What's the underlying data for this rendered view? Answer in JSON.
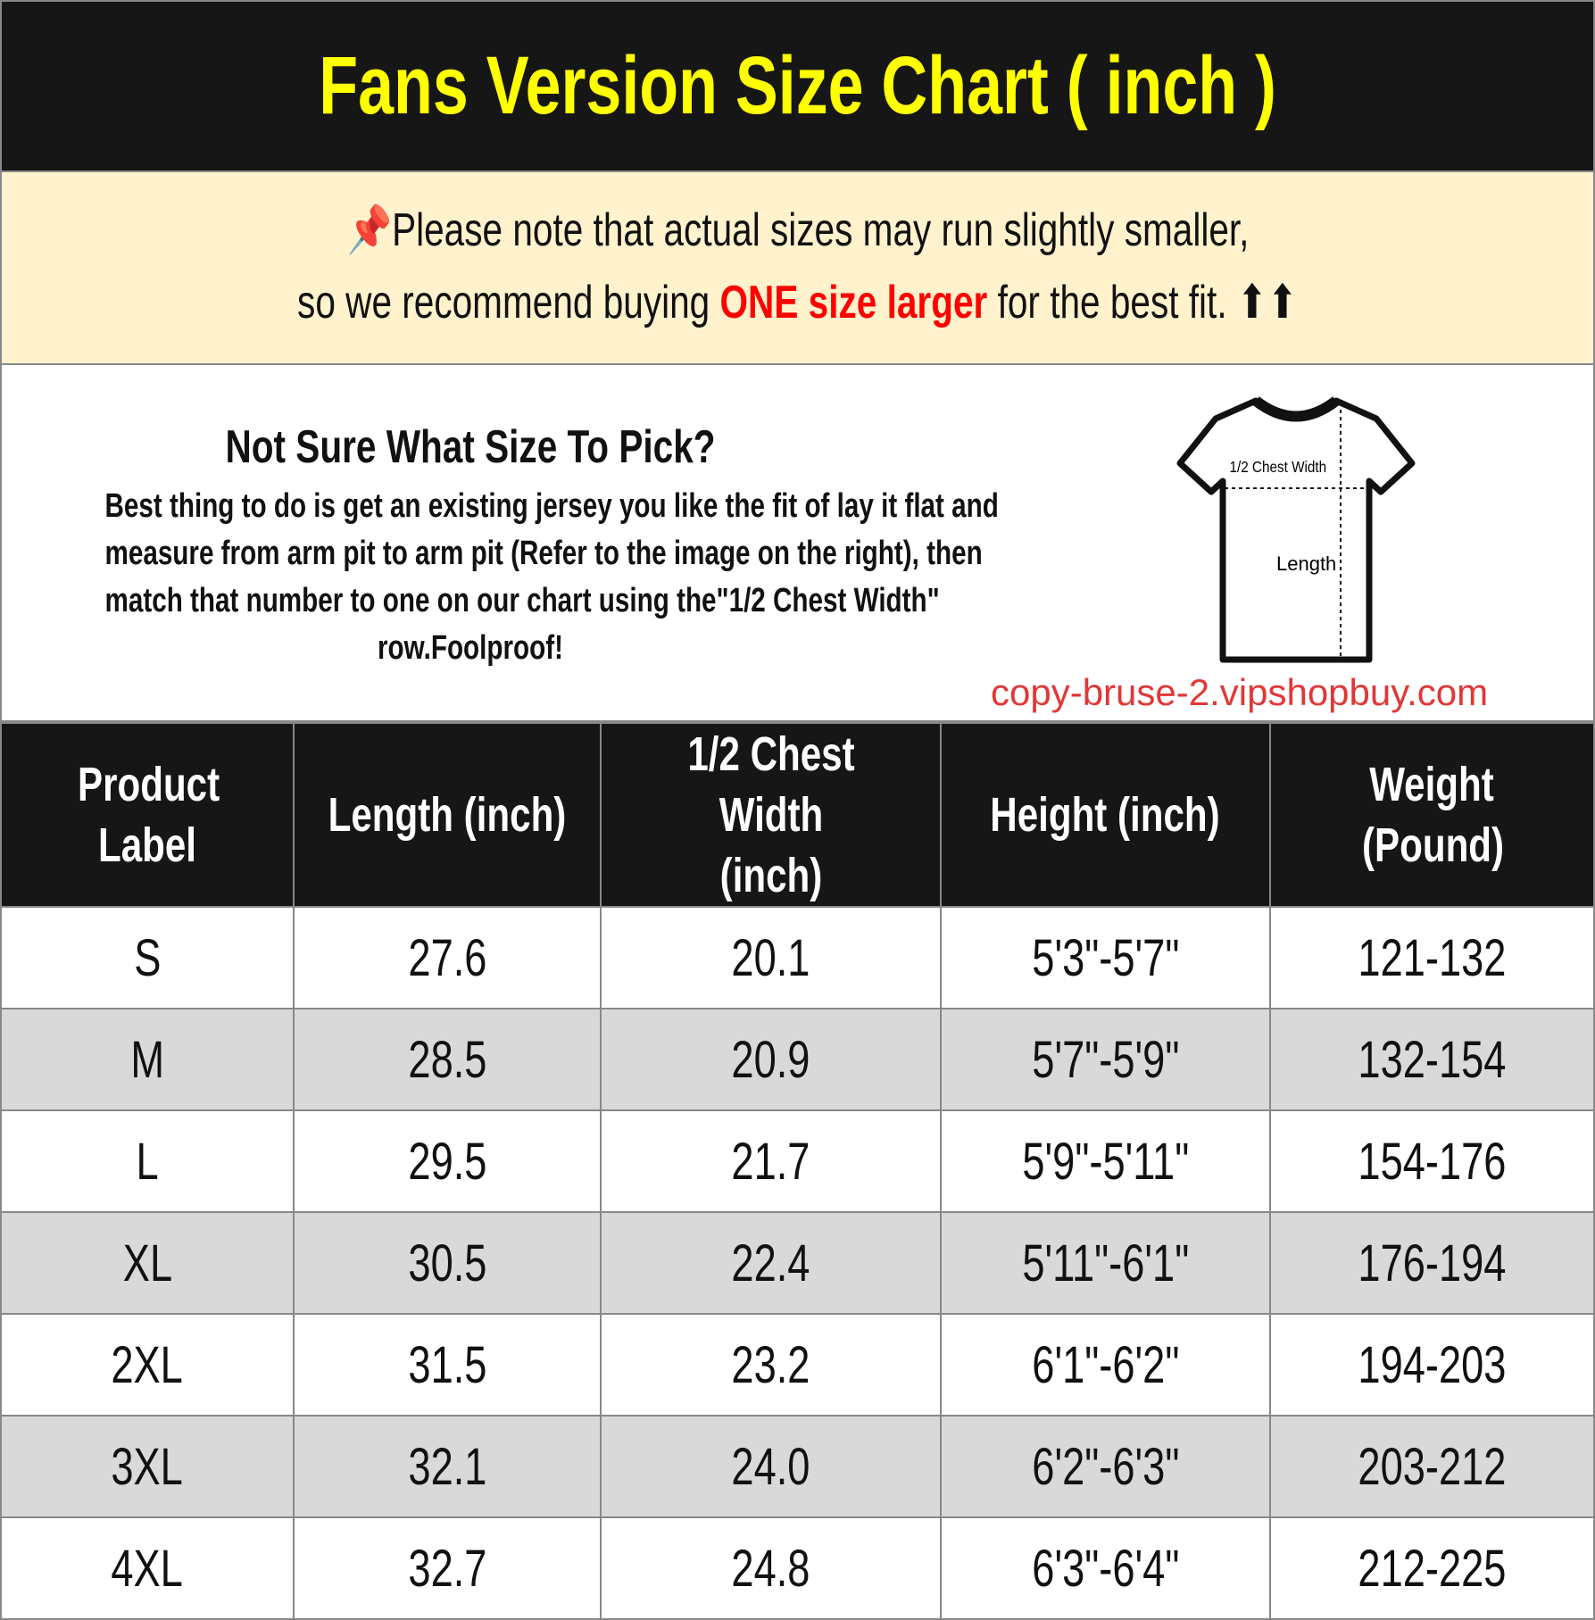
{
  "title": "Fans Version Size Chart ( inch )",
  "notice": {
    "line1": "Please note that actual sizes may run slightly smaller,",
    "line2_pre": "so we recommend buying ",
    "line2_highlight": "ONE size larger",
    "line2_post": " for the best fit. ⬆⬆",
    "icon": "pushpin-icon",
    "highlight_color": "#ff0000"
  },
  "guide": {
    "heading": "Not Sure What Size To Pick?",
    "lines": [
      "Best thing to do is get an existing jersey you like the fit of lay it flat and",
      "measure from arm pit to arm pit (Refer to the image on the right), then",
      "match that number to one on our chart using the\"1/2 Chest Width\"",
      "row.Foolproof!"
    ],
    "diagram_labels": {
      "chest": "1/2 Chest Width",
      "length": "Length"
    }
  },
  "table": {
    "headers": [
      "Product Label",
      "Length (inch)",
      "1/2 Chest Width (inch)",
      "Height (inch)",
      "Weight (Pound)"
    ],
    "rows": [
      [
        "S",
        "27.6",
        "20.1",
        "5'3\"-5'7\"",
        "121-132"
      ],
      [
        "M",
        "28.5",
        "20.9",
        "5'7\"-5'9\"",
        "132-154"
      ],
      [
        "L",
        "29.5",
        "21.7",
        "5'9\"-5'11\"",
        "154-176"
      ],
      [
        "XL",
        "30.5",
        "22.4",
        "5'11\"-6'1\"",
        "176-194"
      ],
      [
        "2XL",
        "31.5",
        "23.2",
        "6'1\"-6'2\"",
        "194-203"
      ],
      [
        "3XL",
        "32.1",
        "24.0",
        "6'2\"-6'3\"",
        "203-212"
      ],
      [
        "4XL",
        "32.7",
        "24.8",
        "6'3\"-6'4\"",
        "212-225"
      ]
    ]
  },
  "watermark": "copy-bruse-2.vipshopbuy.com",
  "colors": {
    "title_bg": "#161616",
    "title_text": "#ffff00",
    "notice_bg": "#fff2cc",
    "alt_row": "#d9d9d9"
  }
}
